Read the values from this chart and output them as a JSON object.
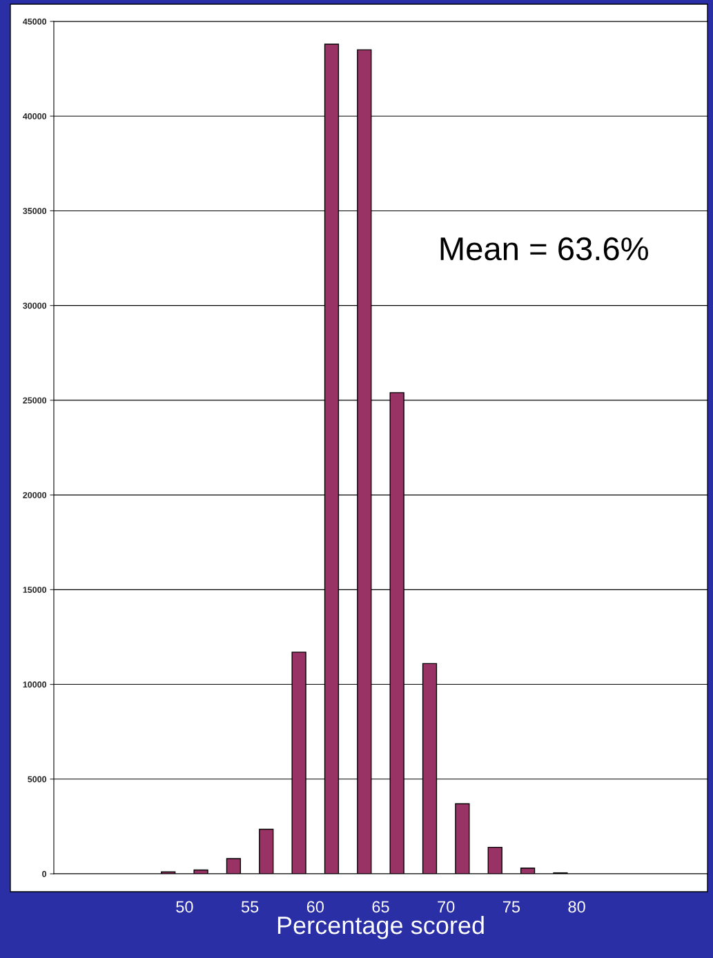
{
  "chart_data": {
    "type": "histogram",
    "xlabel": "Percentage scored",
    "bins": [
      47.5,
      50,
      52.5,
      55,
      57.5,
      60,
      62.5,
      65,
      67.5,
      70,
      72.5,
      75,
      77.5,
      80
    ],
    "values": [
      100,
      200,
      800,
      2350,
      11700,
      43800,
      43500,
      25400,
      11100,
      3700,
      1400,
      300,
      50
    ],
    "color": "#993366",
    "xlim": [
      40,
      90
    ],
    "xticks": [
      50,
      55,
      60,
      65,
      70,
      75,
      80
    ],
    "ylim": [
      0,
      45000
    ],
    "yticks": [
      0,
      5000,
      10000,
      15000,
      20000,
      25000,
      30000,
      35000,
      40000,
      45000
    ],
    "grid": "y",
    "annotations": [
      "Mean = 63.6%"
    ]
  }
}
